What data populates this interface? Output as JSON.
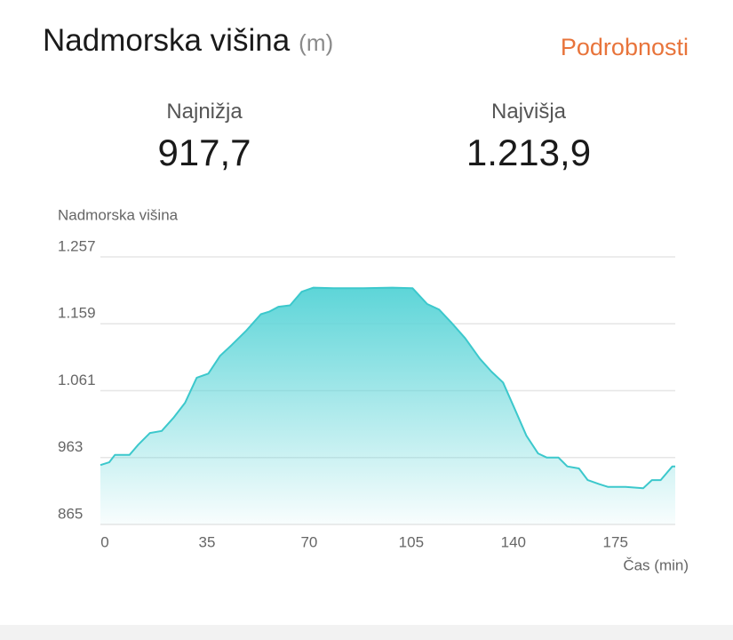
{
  "header": {
    "title": "Nadmorska višina",
    "unit": "(m)",
    "link": "Podrobnosti"
  },
  "stats": [
    {
      "label": "Najnižja",
      "value": "917,7"
    },
    {
      "label": "Najvišja",
      "value": "1.213,9"
    }
  ],
  "chart_data": {
    "type": "area",
    "y_label": "Nadmorska višina",
    "x_label": "Čas (min)",
    "color": "#3cc8cc",
    "x": [
      0,
      3,
      5,
      10,
      13,
      17,
      21,
      25,
      29,
      33,
      37,
      41,
      45,
      50,
      55,
      58,
      61,
      65,
      69,
      73,
      80,
      90,
      100,
      107,
      112,
      116,
      120,
      125,
      130,
      134,
      138,
      142,
      146,
      150,
      153,
      157,
      160,
      164,
      167,
      171,
      174,
      180,
      186,
      189,
      192,
      196,
      197
    ],
    "values": [
      952,
      956,
      967,
      967,
      982,
      999,
      1002,
      1021,
      1043,
      1080,
      1086,
      1112,
      1128,
      1149,
      1173,
      1177,
      1184,
      1186,
      1206,
      1212,
      1211,
      1211,
      1212,
      1211,
      1188,
      1180,
      1162,
      1138,
      1108,
      1089,
      1073,
      1034,
      995,
      969,
      963,
      963,
      950,
      947,
      930,
      924,
      920,
      920,
      918,
      930,
      930,
      950,
      950
    ],
    "xlim": [
      0,
      197
    ],
    "xticks": [
      0,
      35,
      70,
      105,
      140,
      175
    ],
    "ylim": [
      865,
      1257
    ],
    "yticks": [
      {
        "value": 865,
        "label": "865"
      },
      {
        "value": 963,
        "label": "963"
      },
      {
        "value": 1061,
        "label": "1.061"
      },
      {
        "value": 1159,
        "label": "1.159"
      },
      {
        "value": 1257,
        "label": "1.257"
      }
    ],
    "grid": true
  }
}
